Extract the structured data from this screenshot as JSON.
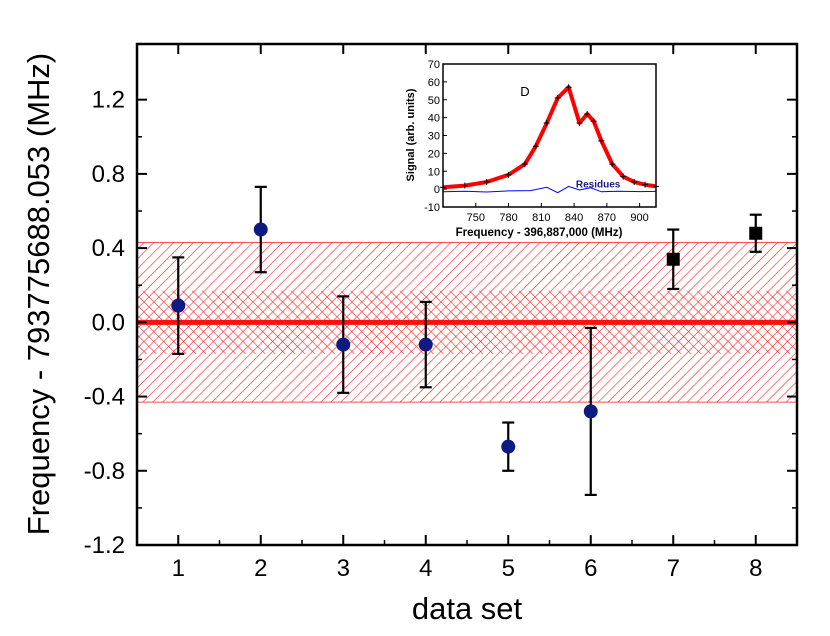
{
  "chart_data": [
    {
      "type": "scatter",
      "xlabel": "data set",
      "ylabel": "Frequency - 793775688.053 (MHz)",
      "xlim": [
        0.5,
        8.5
      ],
      "ylim": [
        -1.2,
        1.5
      ],
      "x_ticks": [
        1,
        2,
        3,
        4,
        5,
        6,
        7,
        8
      ],
      "y_ticks": [
        -1.2,
        -0.8,
        -0.4,
        0.0,
        0.4,
        0.8,
        1.2
      ],
      "y_tick_labels": [
        "-1.2",
        "-0.8",
        "-0.4",
        "0.0",
        "0.4",
        "0.8",
        "1.2"
      ],
      "mean_line": 0.0,
      "band_outer": [
        -0.43,
        0.43
      ],
      "band_inner": [
        -0.17,
        0.17
      ],
      "series": [
        {
          "marker": "circle",
          "color": "#0d1a80",
          "points": [
            {
              "x": 1,
              "y": 0.09,
              "err": 0.26
            },
            {
              "x": 2,
              "y": 0.5,
              "err": 0.23
            },
            {
              "x": 3,
              "y": -0.12,
              "err": 0.26
            },
            {
              "x": 4,
              "y": -0.12,
              "err": 0.23
            },
            {
              "x": 5,
              "y": -0.67,
              "err": 0.13
            },
            {
              "x": 6,
              "y": -0.48,
              "err": 0.45
            }
          ]
        },
        {
          "marker": "square",
          "color": "#000000",
          "points": [
            {
              "x": 7,
              "y": 0.34,
              "err": 0.16
            },
            {
              "x": 8,
              "y": 0.48,
              "err": 0.1
            }
          ]
        }
      ],
      "colors": {
        "mean_line": "#ff1111",
        "band": "#ff2222",
        "error_bar": "#000000"
      }
    },
    {
      "type": "line",
      "xlabel": "Frequency - 396,887,000 (MHz)",
      "ylabel": "Signal (arb. units)",
      "xlim": [
        720,
        915
      ],
      "ylim": [
        -10,
        70
      ],
      "x_ticks": [
        750,
        780,
        810,
        840,
        870,
        900
      ],
      "y_ticks": [
        -10,
        0,
        10,
        20,
        30,
        40,
        50,
        60,
        70
      ],
      "annotations": [
        {
          "text": "D",
          "x": 795,
          "y": 52
        },
        {
          "text": "Residues",
          "x": 862,
          "y": 1
        }
      ],
      "series": [
        {
          "role": "fit",
          "color": "#ff0000",
          "x": [
            720,
            740,
            760,
            780,
            795,
            805,
            815,
            825,
            835,
            845,
            852,
            858,
            865,
            875,
            885,
            895,
            905,
            915
          ],
          "y": [
            1,
            2,
            4,
            8,
            14,
            24,
            37,
            51,
            57,
            37,
            42,
            38,
            27,
            14,
            7,
            4,
            2.5,
            1.5
          ]
        },
        {
          "role": "data",
          "color": "#000000",
          "x": [
            720,
            740,
            760,
            780,
            795,
            805,
            815,
            825,
            835,
            845,
            852,
            858,
            865,
            875,
            885,
            895,
            905,
            915
          ],
          "y": [
            1,
            2,
            4,
            8,
            14,
            24,
            37,
            51,
            57,
            37,
            42,
            38,
            27,
            14,
            7,
            4,
            2.5,
            1.5
          ]
        },
        {
          "role": "residues",
          "color": "#0000ff",
          "x": [
            720,
            740,
            760,
            780,
            800,
            815,
            825,
            835,
            845,
            855,
            865,
            880,
            900,
            915
          ],
          "y": [
            -1.5,
            -1.2,
            -1.6,
            -1.0,
            -0.8,
            1.0,
            -2.0,
            1.5,
            -0.5,
            0.8,
            -1.5,
            -1.2,
            -1.4,
            -1.3
          ]
        }
      ]
    }
  ]
}
